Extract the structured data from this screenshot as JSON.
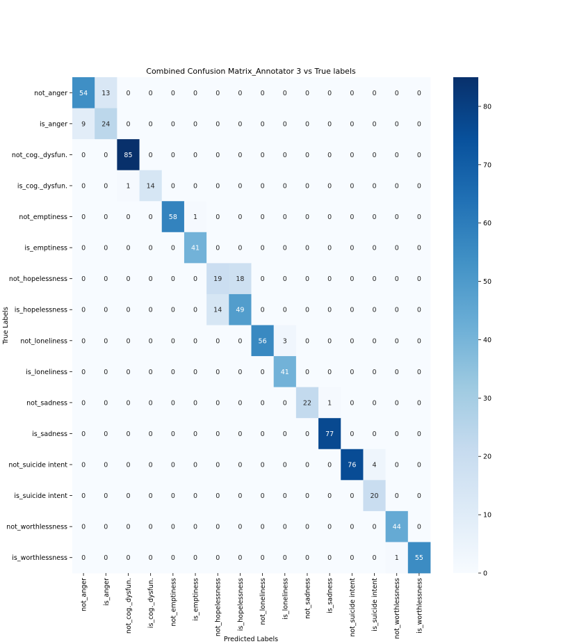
{
  "chart_data": {
    "type": "heatmap",
    "title": "Combined Confusion Matrix_Annotator 3 vs True labels",
    "xlabel": "Predicted Labels",
    "ylabel": "True Labels",
    "labels": [
      "not_anger",
      "is_anger",
      "not_cog._dysfun.",
      "is_cog._dysfun.",
      "not_emptiness",
      "is_emptiness",
      "not_hopelessness",
      "is_hopelessness",
      "not_loneliness",
      "is_loneliness",
      "not_sadness",
      "is_sadness",
      "not_suicide intent",
      "is_suicide intent",
      "not_worthlessness",
      "is_worthlessness"
    ],
    "matrix": [
      [
        54,
        13,
        0,
        0,
        0,
        0,
        0,
        0,
        0,
        0,
        0,
        0,
        0,
        0,
        0,
        0
      ],
      [
        9,
        24,
        0,
        0,
        0,
        0,
        0,
        0,
        0,
        0,
        0,
        0,
        0,
        0,
        0,
        0
      ],
      [
        0,
        0,
        85,
        0,
        0,
        0,
        0,
        0,
        0,
        0,
        0,
        0,
        0,
        0,
        0,
        0
      ],
      [
        0,
        0,
        1,
        14,
        0,
        0,
        0,
        0,
        0,
        0,
        0,
        0,
        0,
        0,
        0,
        0
      ],
      [
        0,
        0,
        0,
        0,
        58,
        1,
        0,
        0,
        0,
        0,
        0,
        0,
        0,
        0,
        0,
        0
      ],
      [
        0,
        0,
        0,
        0,
        0,
        41,
        0,
        0,
        0,
        0,
        0,
        0,
        0,
        0,
        0,
        0
      ],
      [
        0,
        0,
        0,
        0,
        0,
        0,
        19,
        18,
        0,
        0,
        0,
        0,
        0,
        0,
        0,
        0
      ],
      [
        0,
        0,
        0,
        0,
        0,
        0,
        14,
        49,
        0,
        0,
        0,
        0,
        0,
        0,
        0,
        0
      ],
      [
        0,
        0,
        0,
        0,
        0,
        0,
        0,
        0,
        56,
        3,
        0,
        0,
        0,
        0,
        0,
        0
      ],
      [
        0,
        0,
        0,
        0,
        0,
        0,
        0,
        0,
        0,
        41,
        0,
        0,
        0,
        0,
        0,
        0
      ],
      [
        0,
        0,
        0,
        0,
        0,
        0,
        0,
        0,
        0,
        0,
        22,
        1,
        0,
        0,
        0,
        0
      ],
      [
        0,
        0,
        0,
        0,
        0,
        0,
        0,
        0,
        0,
        0,
        0,
        77,
        0,
        0,
        0,
        0
      ],
      [
        0,
        0,
        0,
        0,
        0,
        0,
        0,
        0,
        0,
        0,
        0,
        0,
        76,
        4,
        0,
        0
      ],
      [
        0,
        0,
        0,
        0,
        0,
        0,
        0,
        0,
        0,
        0,
        0,
        0,
        0,
        20,
        0,
        0
      ],
      [
        0,
        0,
        0,
        0,
        0,
        0,
        0,
        0,
        0,
        0,
        0,
        0,
        0,
        0,
        44,
        0
      ],
      [
        0,
        0,
        0,
        0,
        0,
        0,
        0,
        0,
        0,
        0,
        0,
        0,
        0,
        0,
        1,
        55
      ]
    ],
    "colorbar": {
      "min": 0,
      "max": 85,
      "ticks": [
        0,
        10,
        20,
        30,
        40,
        50,
        60,
        70,
        80
      ],
      "colormap": "Blues"
    }
  }
}
